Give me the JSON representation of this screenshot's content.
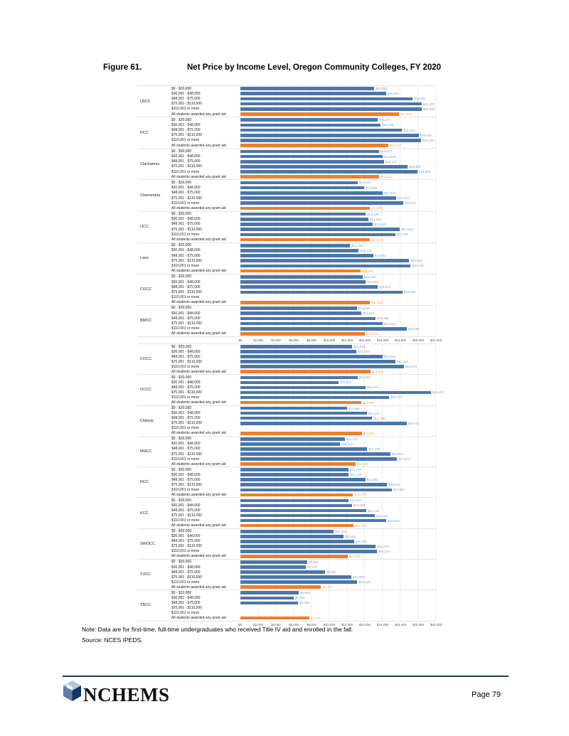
{
  "page": {
    "figure_label": "Figure 61.",
    "title": "Net Price by Income Level, Oregon Community Colleges, FY 2020",
    "note": "Note: Data are for first-time, full-time undergraduates who received Title IV aid and enrolled in the fall.",
    "source": "Source: NCES IPEDS."
  },
  "footer": {
    "logo_icon": "nchems-cube-icon",
    "logo_text": "NCHEMS",
    "page_number": "Page 79"
  },
  "colors": {
    "bar_blue": "#4B76A8",
    "bar_orange": "#EC7E2E",
    "value_label_blue": "#7FA3CC",
    "value_label_orange": "#F2A963",
    "footer_rule": "#1F3864"
  },
  "chart_data": {
    "type": "bar",
    "orientation": "horizontal",
    "title": "Net Price by Income Level, Oregon Community Colleges, FY 2020",
    "categories": [
      "$0 - $30,000",
      "$30,001 - $48,000",
      "$48,001 - $75,000",
      "$75,001 - $110,000",
      "$110,001 or more",
      "All students awarded any grant aid"
    ],
    "axis": {
      "min": 0,
      "max": 22000,
      "step": 2000,
      "tick_labels": [
        "$0",
        "$2,000",
        "$4,000",
        "$6,000",
        "$8,000",
        "$10,000",
        "$12,000",
        "$14,000",
        "$16,000",
        "$18,000",
        "$20,000",
        "$22,000"
      ],
      "grid": true
    },
    "charts": [
      {
        "colleges": [
          {
            "name": "LBCC",
            "values": [
              15040,
              16384,
              19391,
              20372,
              20390,
              17840
            ]
          },
          {
            "name": "PCC",
            "values": [
              15473,
              15759,
              18153,
              20048,
              20350,
              16623
            ]
          },
          {
            "name": "Clackamas",
            "values": [
              15572,
              15995,
              16147,
              18800,
              19909,
              15623
            ]
          },
          {
            "name": "Chemeketa",
            "values": [
              13201,
              13905,
              16004,
              17541,
              18324,
              14585
            ]
          },
          {
            "name": "UCC",
            "values": [
              14109,
              14382,
              14915,
              17916,
              17400,
              14578
            ]
          },
          {
            "name": "Lane",
            "values": [
              12354,
              13315,
              14943,
              18962,
              19148,
              13508
            ]
          },
          {
            "name": "CGCC",
            "values": [
              13723,
              14093,
              15413,
              18209,
              null,
              14569
            ]
          },
          {
            "name": "BMCC",
            "values": [
              13089,
              13615,
              15196,
              16006,
              18682,
              13998
            ]
          }
        ]
      },
      {
        "colleges": [
          {
            "name": "COCC",
            "values": [
              12545,
              13042,
              16002,
              17440,
              18378,
              14639
            ]
          },
          {
            "name": "OCCC",
            "values": [
              13169,
              11054,
              14071,
              21432,
              16717,
              13604
            ]
          },
          {
            "name": "Clatsop",
            "values": [
              11969,
              14237,
              14796,
              18701,
              null,
              13661
            ]
          },
          {
            "name": "MHCC",
            "values": [
              11747,
              11222,
              14229,
              16879,
              17601,
              12925
            ]
          },
          {
            "name": "RCC",
            "values": [
              12147,
              12159,
              14051,
              16517,
              17021,
              12678
            ]
          },
          {
            "name": "KCC",
            "values": [
              12147,
              12535,
              14145,
              15126,
              16418,
              12705
            ]
          },
          {
            "name": "SWOCC",
            "values": [
              10478,
              11566,
              12761,
              15231,
              15374,
              12055
            ]
          },
          {
            "name": "TVCC",
            "values": [
              7497,
              7374,
              9544,
              12502,
              13148,
              9035
            ]
          },
          {
            "name": "TBCC",
            "values": [
              6569,
              5981,
              6484,
              null,
              null,
              7781
            ]
          }
        ]
      }
    ]
  }
}
